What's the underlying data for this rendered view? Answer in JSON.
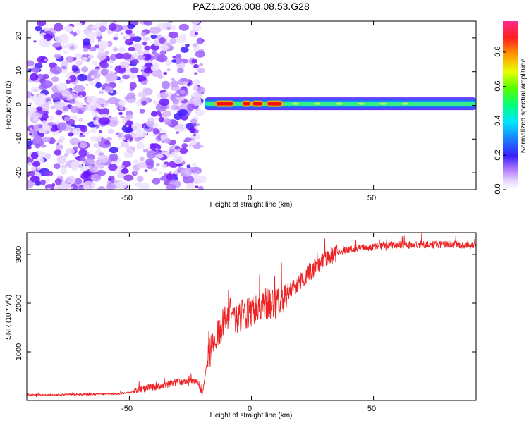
{
  "figure": {
    "title": "PAZ1.2026.008.08.53.G28"
  },
  "colors": {
    "axis": "#000000",
    "snr_line": "#ee2222",
    "ridge_hot": "#ee1111",
    "ridge_band": "#33ee88",
    "noise": "#8a2be2"
  },
  "chart_data": [
    {
      "type": "heatmap",
      "name": "spectrogram",
      "title": "PAZ1.2026.008.08.53.G28",
      "xlabel": "Height of straight line (km)",
      "ylabel": "Frequency (Hz)",
      "xlim": [
        -92,
        92
      ],
      "ylim": [
        -25,
        25
      ],
      "xticks": [
        -50,
        0,
        50
      ],
      "xtick_labels": [
        "-50",
        "0",
        "50"
      ],
      "yticks": [
        -20,
        -10,
        0,
        10,
        20
      ],
      "ytick_labels": [
        "-20",
        "-10",
        "0",
        "10",
        "20"
      ],
      "noise_region_x": [
        -92,
        -20
      ],
      "ridge": {
        "x_start": -19,
        "x_end": 92,
        "frequency": 0.5,
        "hot_segments": [
          [
            -15,
            -7
          ],
          [
            -4,
            0
          ],
          [
            0,
            5
          ],
          [
            6,
            13
          ]
        ]
      },
      "colorbar": {
        "label": "Normalized spectral amplitude",
        "range": [
          0.0,
          0.98
        ],
        "ticks": [
          0.0,
          0.2,
          0.4,
          0.6,
          0.8
        ],
        "tick_labels": [
          "0.0",
          "0.2",
          "0.4",
          "0.6",
          "0.8"
        ]
      }
    },
    {
      "type": "line",
      "name": "snr",
      "xlabel": "Height of straight line (km)",
      "ylabel": "SNR (10 * v/v)",
      "xlim": [
        -92,
        92
      ],
      "ylim": [
        0,
        3450
      ],
      "xticks": [
        -50,
        0,
        50
      ],
      "xtick_labels": [
        "-50",
        "0",
        "50"
      ],
      "yticks": [
        1000,
        2000,
        3000
      ],
      "ytick_labels": [
        "1000",
        "2000",
        "3000"
      ],
      "series": [
        {
          "name": "SNR",
          "x": [
            -92,
            -85,
            -75,
            -65,
            -55,
            -50,
            -45,
            -40,
            -35,
            -30,
            -25,
            -22,
            -20,
            -18,
            -16,
            -14,
            -12,
            -10,
            -8,
            -6,
            -4,
            -2,
            0,
            2,
            5,
            8,
            10,
            15,
            20,
            25,
            30,
            35,
            40,
            45,
            50,
            55,
            60,
            65,
            70,
            75,
            80,
            85,
            92
          ],
          "values": [
            120,
            110,
            120,
            130,
            140,
            160,
            230,
            280,
            320,
            380,
            420,
            380,
            150,
            850,
            1150,
            1350,
            1550,
            1700,
            1850,
            1650,
            1750,
            1800,
            1850,
            1900,
            2000,
            1950,
            2000,
            2200,
            2450,
            2700,
            2900,
            3050,
            3100,
            3150,
            3150,
            3200,
            3200,
            3200,
            3210,
            3200,
            3220,
            3200,
            3180
          ]
        }
      ]
    }
  ]
}
